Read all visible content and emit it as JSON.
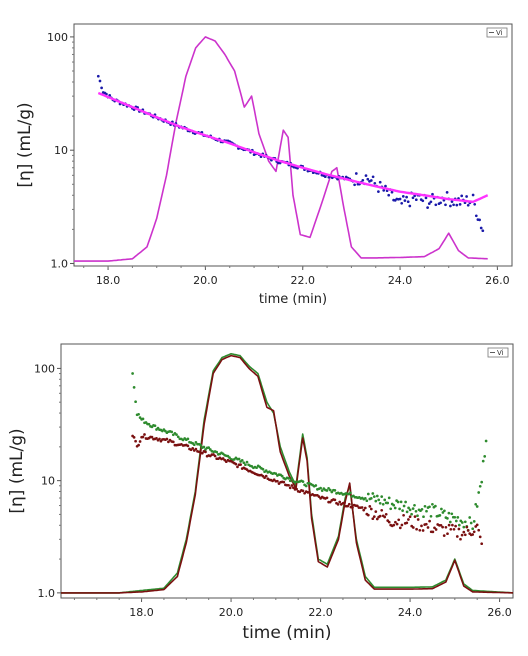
{
  "chart_data": [
    {
      "type": "line",
      "xlabel": "time (min)",
      "ylabel": "[η] (mL/g)",
      "legend": "Vi",
      "legend_position": "top-right",
      "xlim": [
        17.3,
        26.3
      ],
      "ylim": [
        0.95,
        130
      ],
      "yscale": "log",
      "xticks": [
        "18.0",
        "20.0",
        "22.0",
        "24.0",
        "26.0"
      ],
      "yticks": [
        "1.0",
        "10",
        "100"
      ],
      "grid": false,
      "series": [
        {
          "name": "",
          "color": "#cc33cc",
          "style": "detector trace (scaled)",
          "x": [
            17.3,
            18.0,
            18.5,
            18.8,
            19.0,
            19.2,
            19.4,
            19.6,
            19.8,
            20.0,
            20.2,
            20.4,
            20.6,
            20.8,
            20.95,
            21.1,
            21.3,
            21.45,
            21.6,
            21.7,
            21.8,
            21.95,
            22.15,
            22.4,
            22.6,
            22.7,
            22.85,
            23.0,
            23.2,
            23.5,
            24.0,
            24.5,
            24.8,
            25.0,
            25.2,
            25.4,
            25.8
          ],
          "y": [
            1.05,
            1.05,
            1.1,
            1.4,
            2.5,
            6,
            18,
            45,
            80,
            100,
            92,
            70,
            50,
            24,
            30,
            14,
            8,
            6.5,
            15,
            13,
            4,
            1.8,
            1.7,
            3.5,
            6.5,
            7,
            3,
            1.4,
            1.12,
            1.12,
            1.13,
            1.15,
            1.35,
            1.85,
            1.3,
            1.12,
            1.1
          ]
        },
        {
          "name": "",
          "color": "#1a1aaa",
          "style": "intrinsic viscosity (dots)",
          "x": [
            17.8,
            17.9,
            18.1,
            18.5,
            19.0,
            19.5,
            20.0,
            20.5,
            21.0,
            21.5,
            22.0,
            22.5,
            23.0,
            23.3,
            23.7,
            24.0,
            24.3,
            24.6,
            24.9,
            25.2,
            25.5,
            25.7
          ],
          "y": [
            45,
            33,
            28,
            24,
            19.5,
            16,
            13.5,
            11.5,
            9.5,
            8,
            7,
            6,
            5.5,
            5.8,
            4.3,
            3.3,
            3.8,
            3.5,
            3.8,
            3.5,
            3.6,
            2
          ]
        },
        {
          "name": "",
          "color": "#ff33ff",
          "style": "intrinsic viscosity (fit)",
          "x": [
            17.8,
            18.5,
            19.0,
            19.5,
            20.0,
            20.5,
            21.0,
            21.5,
            22.0,
            22.5,
            23.0,
            23.5,
            24.0,
            24.5,
            25.0,
            25.5,
            25.8
          ],
          "y": [
            32,
            24,
            19.5,
            16,
            13.5,
            11.5,
            9.6,
            8.1,
            7,
            6.1,
            5.4,
            4.8,
            4.3,
            4,
            3.7,
            3.5,
            4
          ]
        }
      ]
    },
    {
      "type": "line",
      "xlabel": "time (min)",
      "ylabel": "[η] (mL/g)",
      "legend": "Vi",
      "legend_position": "top-right",
      "xlim": [
        16.2,
        26.3
      ],
      "ylim": [
        0.9,
        165
      ],
      "yscale": "log",
      "xticks": [
        "18.0",
        "20.0",
        "22.0",
        "24.0",
        "26.0"
      ],
      "yticks": [
        "1.0",
        "10",
        "100"
      ],
      "grid": false,
      "series": [
        {
          "name": "",
          "color": "#2e8b2e",
          "style": "detector trace (scaled)",
          "x": [
            16.2,
            17.5,
            18.0,
            18.5,
            18.8,
            19.0,
            19.2,
            19.4,
            19.6,
            19.8,
            20.0,
            20.2,
            20.4,
            20.6,
            20.8,
            20.95,
            21.1,
            21.3,
            21.45,
            21.6,
            21.7,
            21.8,
            21.95,
            22.15,
            22.4,
            22.55,
            22.65,
            22.8,
            23.0,
            23.2,
            23.5,
            24.0,
            24.5,
            24.8,
            25.0,
            25.2,
            25.4,
            26.3
          ],
          "y": [
            1.0,
            1.0,
            1.05,
            1.1,
            1.5,
            3,
            8,
            35,
            95,
            125,
            135,
            130,
            105,
            90,
            50,
            40,
            20,
            12,
            9,
            26,
            16,
            5,
            2,
            1.8,
            3.2,
            7,
            9,
            3,
            1.4,
            1.12,
            1.12,
            1.12,
            1.13,
            1.3,
            2.0,
            1.2,
            1.05,
            1.0
          ]
        },
        {
          "name": "",
          "color": "#7a1010",
          "style": "detector trace (scaled)",
          "x": [
            16.2,
            17.5,
            18.0,
            18.5,
            18.8,
            19.0,
            19.2,
            19.4,
            19.6,
            19.8,
            20.0,
            20.2,
            20.4,
            20.6,
            20.8,
            20.95,
            21.1,
            21.3,
            21.45,
            21.6,
            21.7,
            21.8,
            21.95,
            22.15,
            22.4,
            22.55,
            22.65,
            22.8,
            23.0,
            23.2,
            23.5,
            24.0,
            24.5,
            24.8,
            25.0,
            25.2,
            25.4,
            26.3
          ],
          "y": [
            1.0,
            1.0,
            1.02,
            1.07,
            1.4,
            2.8,
            7.5,
            32,
            90,
            120,
            130,
            125,
            100,
            85,
            45,
            42,
            18,
            11,
            8.5,
            24,
            15,
            4.6,
            1.9,
            1.7,
            3.0,
            6.5,
            9.5,
            2.8,
            1.3,
            1.08,
            1.08,
            1.08,
            1.09,
            1.25,
            1.95,
            1.15,
            1.02,
            1.0
          ]
        },
        {
          "name": "",
          "color": "#2e8b2e",
          "style": "intrinsic viscosity (dots)",
          "x": [
            17.8,
            17.9,
            18.0,
            18.3,
            18.6,
            19.0,
            19.5,
            20.0,
            20.5,
            21.0,
            21.5,
            22.0,
            22.5,
            22.8,
            23.0,
            23.3,
            23.6,
            23.9,
            24.2,
            24.5,
            24.8,
            25.1,
            25.4,
            25.6,
            25.7
          ],
          "y": [
            90,
            40,
            35,
            30,
            27,
            23,
            19,
            16,
            13.5,
            11.5,
            9.8,
            8.5,
            7.8,
            7.3,
            7,
            6.8,
            6.2,
            6,
            5.5,
            5.4,
            4.8,
            4.5,
            4,
            10,
            25
          ]
        },
        {
          "name": "",
          "color": "#7a1010",
          "style": "intrinsic viscosity (dots)",
          "x": [
            17.8,
            17.9,
            18.0,
            18.3,
            18.6,
            19.0,
            19.5,
            20.0,
            20.5,
            21.0,
            21.5,
            22.0,
            22.5,
            23.0,
            23.3,
            23.6,
            24.0,
            24.4,
            24.8,
            25.2,
            25.5,
            25.6
          ],
          "y": [
            26,
            20,
            25,
            24,
            22.5,
            20,
            17,
            14.5,
            12,
            10,
            8.3,
            7,
            6.2,
            5.6,
            5,
            4.4,
            4.3,
            3.9,
            3.6,
            3.4,
            3.8,
            2.6
          ]
        }
      ]
    }
  ]
}
